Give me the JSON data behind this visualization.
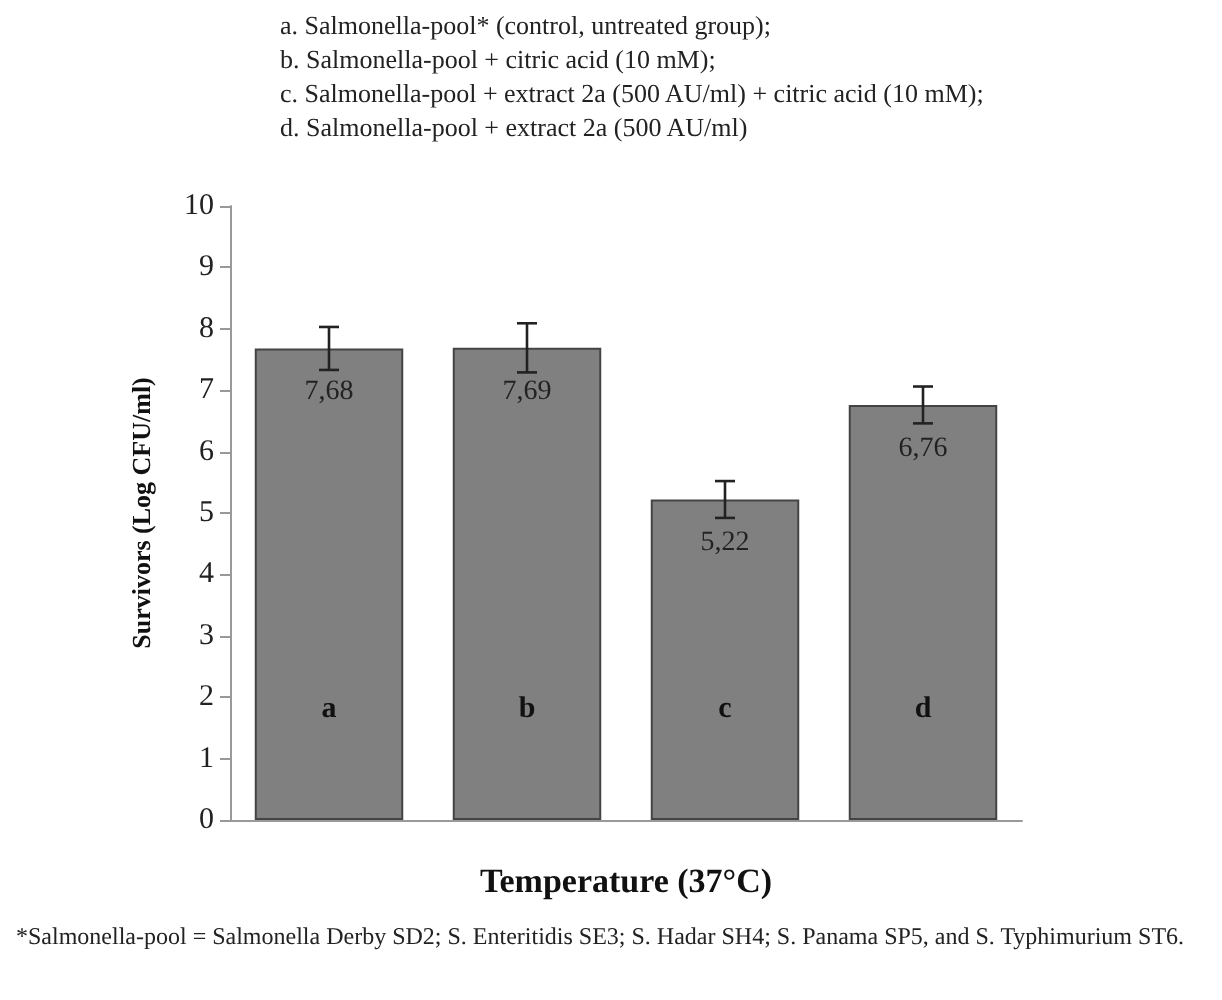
{
  "chart_data": {
    "type": "bar",
    "annotations": [
      "a. Salmonella-pool* (control, untreated group);",
      "b. Salmonella-pool + citric acid (10 mM);",
      "c. Salmonella-pool + extract 2a (500 AU/ml) + citric acid (10 mM);",
      "d. Salmonella-pool + extract 2a (500 AU/ml)",
      "*Salmonella-pool = Salmonella Derby SD2; S. Enteritidis SE3; S. Hadar SH4; S. Panama SP5, and S. Typhimurium ST6."
    ],
    "xlabel": "Temperature (37°C)",
    "ylabel": "Survivors (Log CFU/ml)",
    "categories": [
      "a",
      "b",
      "c",
      "d"
    ],
    "values": [
      7.68,
      7.69,
      5.22,
      6.76
    ],
    "value_labels": [
      "7,68",
      "7,69",
      "5,22",
      "6,76"
    ],
    "errors": [
      0.35,
      0.4,
      0.3,
      0.3
    ],
    "color": "#808080",
    "ylim": [
      0,
      10
    ],
    "yticks": [
      0,
      1,
      2,
      3,
      4,
      5,
      6,
      7,
      8,
      9,
      10
    ],
    "grid": false
  }
}
